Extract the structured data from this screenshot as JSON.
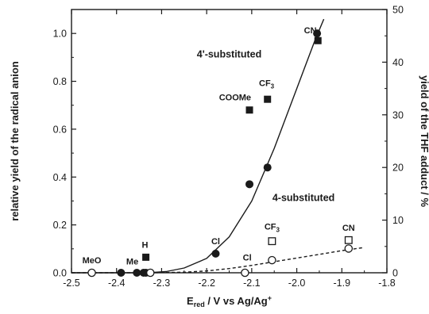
{
  "chart_data": {
    "type": "scatter",
    "xlabel": "E",
    "xlabel_sub": "red",
    "xlabel_rest": " / V vs Ag/Ag",
    "xlabel_sup": "+",
    "ylabel": "relative yield of the radical anion",
    "y2label": "yield of the THF adduct / %",
    "xlim": [
      -2.5,
      -1.8
    ],
    "ylim": [
      0,
      1.1
    ],
    "y2lim": [
      0,
      50
    ],
    "xticks": [
      "-2.5",
      "-2.4",
      "-2.3",
      "-2.2",
      "-2.1",
      "-2.0",
      "-1.9",
      "-1.8"
    ],
    "yticks": [
      "0.0",
      "0.2",
      "0.4",
      "0.6",
      "0.8",
      "1.0"
    ],
    "y2ticks": [
      "0",
      "10",
      "20",
      "30",
      "40",
      "50"
    ],
    "grid": false,
    "series": [
      {
        "name": "4'-substituted",
        "marker": "filled-circle",
        "axis": "left",
        "x": [
          -2.39,
          -2.355,
          -2.34,
          -2.335,
          -2.18,
          -2.105,
          -2.065,
          -1.955
        ],
        "y": [
          0.0,
          0.0,
          0.0,
          0.0,
          0.08,
          0.37,
          0.44,
          1.0
        ]
      },
      {
        "name": "4'-substituted",
        "marker": "filled-square",
        "axis": "left",
        "x": [
          -2.335,
          -2.105,
          -2.065,
          -1.953
        ],
        "y": [
          0.065,
          0.68,
          0.725,
          0.97
        ]
      },
      {
        "name": "4-substituted",
        "marker": "open-circle",
        "axis": "right",
        "x": [
          -2.455,
          -2.325,
          -2.115,
          -2.055,
          -1.885
        ],
        "y": [
          0.0,
          0.0,
          0.0,
          2.4,
          4.6
        ]
      },
      {
        "name": "4-substituted",
        "marker": "open-square",
        "axis": "right",
        "x": [
          -2.055,
          -1.885
        ],
        "y": [
          6.0,
          6.2
        ]
      }
    ],
    "curves": [
      {
        "style": "solid",
        "axis": "left",
        "x": [
          -2.5,
          -2.33,
          -2.29,
          -2.25,
          -2.2,
          -2.15,
          -2.1,
          -2.05,
          -2.0,
          -1.96,
          -1.94
        ],
        "y": [
          0.0,
          0.0,
          0.005,
          0.02,
          0.06,
          0.15,
          0.3,
          0.52,
          0.77,
          0.97,
          1.06
        ]
      },
      {
        "style": "dashed",
        "axis": "right",
        "x": [
          -2.5,
          -2.32,
          -2.25,
          -2.2,
          -2.15,
          -2.1,
          -2.05,
          -2.0,
          -1.95,
          -1.9,
          -1.85
        ],
        "y": [
          0.0,
          0.0,
          0.1,
          0.35,
          0.8,
          1.4,
          2.1,
          2.8,
          3.5,
          4.2,
          4.8
        ]
      }
    ],
    "annotations": [
      {
        "text": "MeO",
        "x": -2.455,
        "y": 0.04,
        "axis": "left"
      },
      {
        "text": "Me",
        "x": -2.365,
        "y": 0.035,
        "axis": "left"
      },
      {
        "text": "H",
        "x": -2.337,
        "y": 0.105,
        "axis": "left"
      },
      {
        "text": "Cl",
        "x": -2.18,
        "y": 0.12,
        "axis": "left"
      },
      {
        "text": "COOMe",
        "x": -2.137,
        "y": 0.72,
        "axis": "left"
      },
      {
        "text": "CF",
        "sub": "3",
        "x": -2.067,
        "y": 0.78,
        "axis": "left"
      },
      {
        "text": "CN",
        "x": -1.97,
        "y": 1.0,
        "axis": "left"
      },
      {
        "text": "Cl",
        "x": -2.11,
        "y": 0.052,
        "axis": "left"
      },
      {
        "text": "CF",
        "sub": "3",
        "x": -2.055,
        "y": 0.18,
        "axis": "left"
      },
      {
        "text": "CN",
        "x": -1.885,
        "y": 0.175,
        "axis": "left"
      }
    ],
    "group_labels": [
      {
        "text": "4'-substituted",
        "x": -2.15,
        "y": 0.9
      },
      {
        "text": "4-substituted",
        "x": -1.985,
        "y": 0.3
      }
    ]
  }
}
